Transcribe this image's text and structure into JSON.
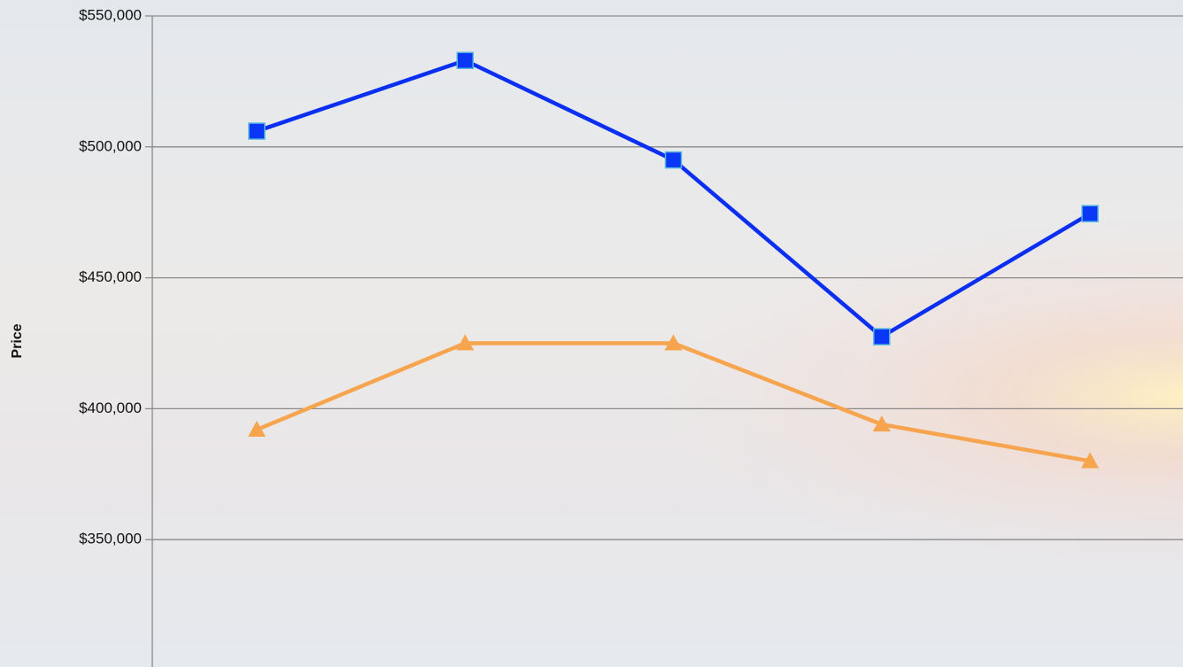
{
  "chart_data": {
    "type": "line",
    "y_label": "Price",
    "categories": [
      null,
      null,
      null,
      null,
      null
    ],
    "series": [
      {
        "color": "#0a2ff0",
        "marker": "square",
        "values": [
          506000,
          533000,
          495000,
          427500,
          474500
        ]
      },
      {
        "color": "#f7a44e",
        "marker": "triangle",
        "values": [
          392000,
          425000,
          425000,
          394000,
          380000
        ]
      }
    ],
    "ylim": [
      300000,
      550000
    ],
    "yticks": [
      {
        "value": 350000,
        "label": "$350,000"
      },
      {
        "value": 400000,
        "label": "$400,000"
      },
      {
        "value": 450000,
        "label": "$450,000"
      },
      {
        "value": 500000,
        "label": "$500,000"
      },
      {
        "value": 550000,
        "label": "$550,000"
      }
    ],
    "grid": true
  }
}
